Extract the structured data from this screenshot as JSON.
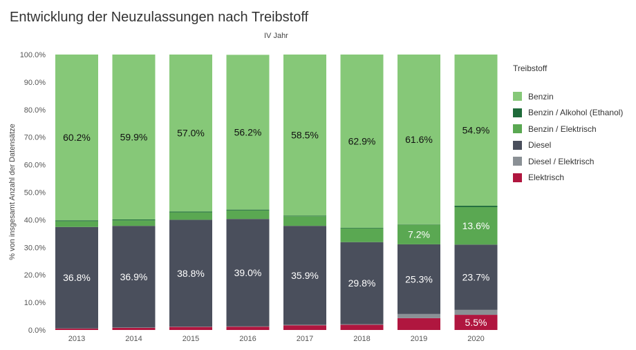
{
  "chart_data": {
    "type": "bar",
    "stacked": true,
    "title": "Entwicklung der Neuzulassungen nach Treibstoff",
    "subtitle": "IV Jahr",
    "xlabel": "",
    "ylabel": "% von insgesamt Anzahl der Datensätze",
    "ylim": [
      0,
      100
    ],
    "yticks": [
      "0.0%",
      "10.0%",
      "20.0%",
      "30.0%",
      "40.0%",
      "50.0%",
      "60.0%",
      "70.0%",
      "80.0%",
      "90.0%",
      "100.0%"
    ],
    "grid": false,
    "legend_title": "Treibstoff",
    "legend_position": "right",
    "categories": [
      "2013",
      "2014",
      "2015",
      "2016",
      "2017",
      "2018",
      "2019",
      "2020"
    ],
    "series": [
      {
        "name": "Elektrisch",
        "color": "#b0163f",
        "values": [
          0.5,
          0.8,
          1.1,
          1.2,
          1.7,
          1.9,
          4.3,
          5.5
        ],
        "labels": [
          "",
          "",
          "",
          "",
          "",
          "",
          "",
          "5.5%"
        ]
      },
      {
        "name": "Diesel / Elektrisch",
        "color": "#8a9095",
        "values": [
          0.1,
          0.1,
          0.1,
          0.1,
          0.2,
          0.2,
          1.5,
          1.8
        ],
        "labels": [
          "",
          "",
          "",
          "",
          "",
          "",
          "",
          ""
        ]
      },
      {
        "name": "Diesel",
        "color": "#4a4f5c",
        "values": [
          36.8,
          36.9,
          38.8,
          39.0,
          35.9,
          29.8,
          25.3,
          23.7
        ],
        "labels": [
          "36.8%",
          "36.9%",
          "38.8%",
          "39.0%",
          "35.9%",
          "29.8%",
          "25.3%",
          "23.7%"
        ]
      },
      {
        "name": "Benzin / Elektrisch",
        "color": "#5aa852",
        "values": [
          2.1,
          2.0,
          2.7,
          3.1,
          3.5,
          5.0,
          7.2,
          13.6
        ],
        "labels": [
          "",
          "",
          "",
          "",
          "",
          "",
          "7.2%",
          "13.6%"
        ]
      },
      {
        "name": "Benzin / Alkohol (Ethanol)",
        "color": "#1f6b3a",
        "values": [
          0.3,
          0.3,
          0.3,
          0.3,
          0.2,
          0.2,
          0.1,
          0.5
        ],
        "labels": [
          "",
          "",
          "",
          "",
          "",
          "",
          "",
          ""
        ]
      },
      {
        "name": "Benzin",
        "color": "#86c878",
        "values": [
          60.2,
          59.9,
          57.0,
          56.2,
          58.5,
          62.9,
          61.6,
          54.9
        ],
        "labels": [
          "60.2%",
          "59.9%",
          "57.0%",
          "56.2%",
          "58.5%",
          "62.9%",
          "61.6%",
          "54.9%"
        ]
      }
    ],
    "legend_order": [
      "Benzin",
      "Benzin / Alkohol (Ethanol)",
      "Benzin / Elektrisch",
      "Diesel",
      "Diesel / Elektrisch",
      "Elektrisch"
    ]
  }
}
